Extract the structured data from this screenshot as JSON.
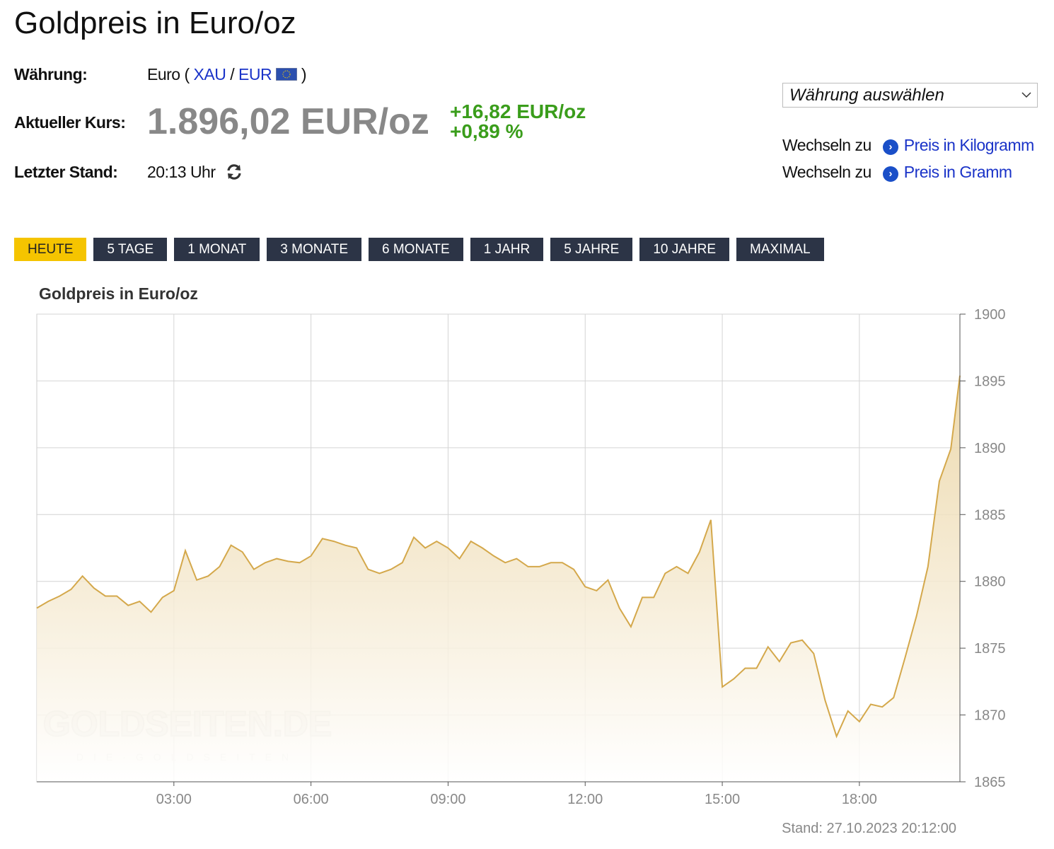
{
  "title": "Goldpreis in Euro/oz",
  "info": {
    "currency_label": "Währung:",
    "currency_prefix": "Euro (",
    "currency_links": [
      "XAU",
      "EUR"
    ],
    "currency_separator": "/",
    "currency_suffix": ")",
    "price_label": "Aktueller Kurs:",
    "price": "1.896,02 EUR/oz",
    "change_abs": "+16,82 EUR/oz",
    "change_pct": "+0,89 %",
    "stand_label": "Letzter Stand:",
    "stand_time": "20:13 Uhr"
  },
  "sidebar": {
    "select": "Währung auswählen",
    "switch": [
      {
        "prefix": "Wechseln zu",
        "link": "Preis in Kilogramm"
      },
      {
        "prefix": "Wechseln zu",
        "link": "Preis in Gramm"
      }
    ]
  },
  "tabs": [
    "HEUTE",
    "5 TAGE",
    "1 MONAT",
    "3 MONATE",
    "6 MONATE",
    "1 JAHR",
    "5 JAHRE",
    "10 JAHRE",
    "MAXIMAL"
  ],
  "active_tab": 0,
  "chart_data": {
    "type": "area",
    "title": "Goldpreis in Euro/oz",
    "color": "#d4a84b",
    "x": [
      0,
      0.25,
      0.5,
      0.75,
      1,
      1.25,
      1.5,
      1.75,
      2,
      2.25,
      2.5,
      2.75,
      3,
      3.25,
      3.5,
      3.75,
      4,
      4.25,
      4.5,
      4.75,
      5,
      5.25,
      5.5,
      5.75,
      6,
      6.25,
      6.5,
      6.75,
      7,
      7.25,
      7.5,
      7.75,
      8,
      8.25,
      8.5,
      8.75,
      9,
      9.25,
      9.5,
      9.75,
      10,
      10.25,
      10.5,
      10.75,
      11,
      11.25,
      11.5,
      11.75,
      12,
      12.25,
      12.5,
      12.75,
      13,
      13.25,
      13.5,
      13.75,
      14,
      14.25,
      14.5,
      14.75,
      15,
      15.25,
      15.5,
      15.75,
      16,
      16.25,
      16.5,
      16.75,
      17,
      17.25,
      17.5,
      17.75,
      18,
      18.25,
      18.5,
      18.75,
      19,
      19.25,
      19.5,
      19.75,
      20,
      20.2
    ],
    "values": [
      1878.0,
      1878.5,
      1878.9,
      1879.4,
      1880.4,
      1879.5,
      1878.9,
      1878.9,
      1878.2,
      1878.5,
      1877.7,
      1878.8,
      1879.3,
      1882.3,
      1880.1,
      1880.4,
      1881.1,
      1882.7,
      1882.2,
      1880.9,
      1881.4,
      1881.7,
      1881.5,
      1881.4,
      1881.9,
      1883.2,
      1883.0,
      1882.7,
      1882.5,
      1880.9,
      1880.6,
      1880.9,
      1881.4,
      1883.3,
      1882.5,
      1883.0,
      1882.5,
      1881.7,
      1883.0,
      1882.5,
      1881.9,
      1881.4,
      1881.7,
      1881.1,
      1881.1,
      1881.4,
      1881.4,
      1880.9,
      1879.6,
      1879.3,
      1880.1,
      1878.0,
      1876.6,
      1878.8,
      1878.8,
      1880.6,
      1881.1,
      1880.6,
      1882.2,
      1884.6,
      1872.1,
      1872.7,
      1873.5,
      1873.5,
      1875.1,
      1874.0,
      1875.4,
      1875.6,
      1874.6,
      1871.1,
      1868.4,
      1870.3,
      1869.5,
      1870.8,
      1870.6,
      1871.3,
      1874.3,
      1877.4,
      1881.1,
      1887.5,
      1889.9,
      1895.4
    ],
    "xlim": [
      0,
      20.2
    ],
    "ylim": [
      1865,
      1900
    ],
    "xticks": [
      {
        "value": 3,
        "label": "03:00"
      },
      {
        "value": 6,
        "label": "06:00"
      },
      {
        "value": 9,
        "label": "09:00"
      },
      {
        "value": 12,
        "label": "12:00"
      },
      {
        "value": 15,
        "label": "15:00"
      },
      {
        "value": 18,
        "label": "18:00"
      }
    ],
    "yticks": [
      1865,
      1870,
      1875,
      1880,
      1885,
      1890,
      1895,
      1900
    ],
    "grid": true,
    "watermark": "GOLDSEITEN.DE",
    "watermark_sub": "DIE·GOLDSEITEN",
    "footer": "Stand: 27.10.2023 20:12:00"
  }
}
